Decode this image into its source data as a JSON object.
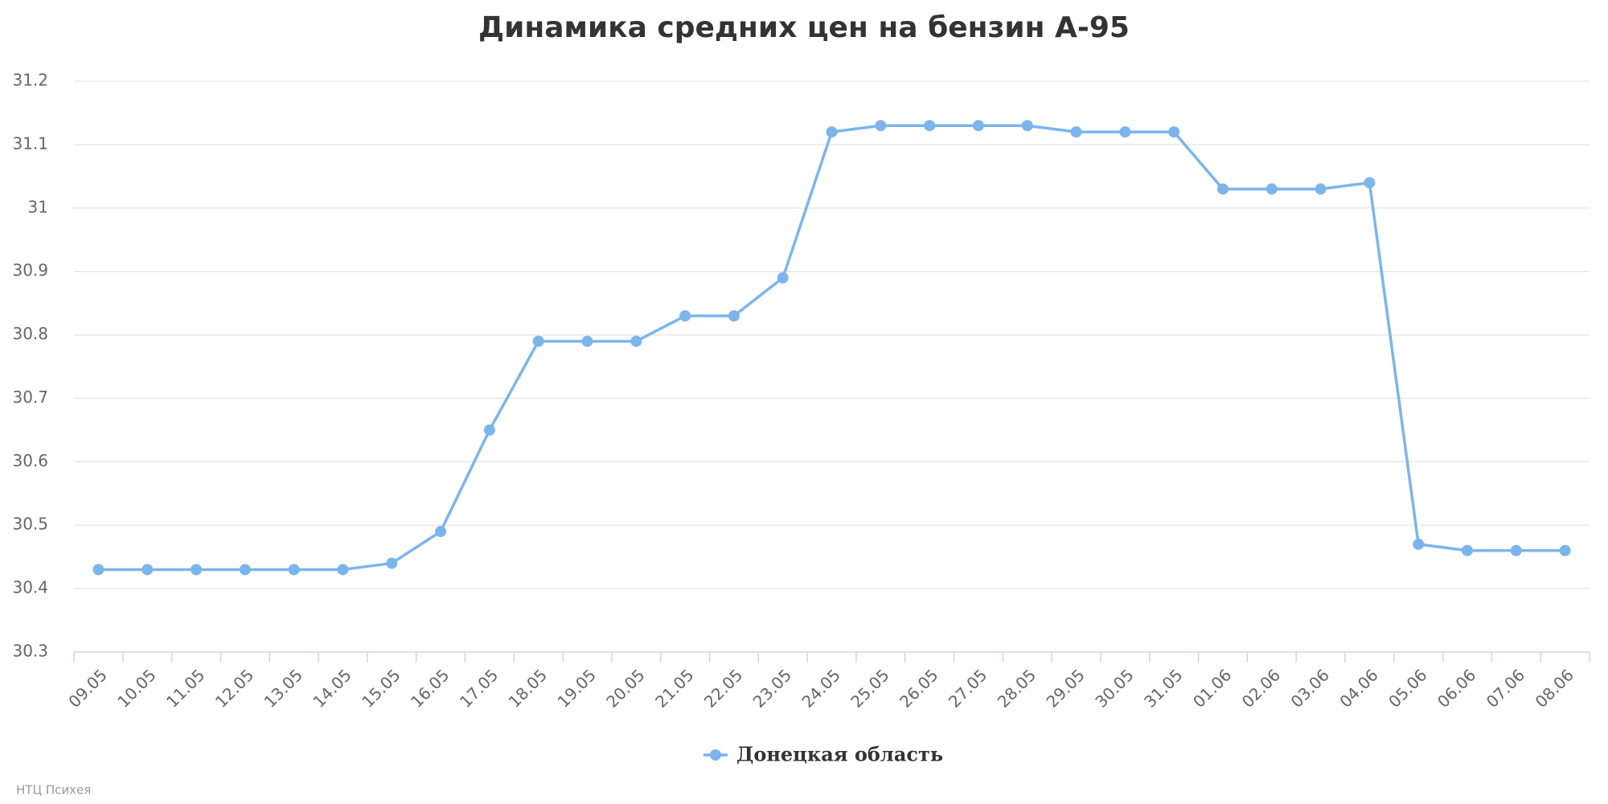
{
  "chart_data": {
    "type": "line",
    "title": "Динамика средних цен на бензин А-95",
    "categories": [
      "09.05",
      "10.05",
      "11.05",
      "12.05",
      "13.05",
      "14.05",
      "15.05",
      "16.05",
      "17.05",
      "18.05",
      "19.05",
      "20.05",
      "21.05",
      "22.05",
      "23.05",
      "24.05",
      "25.05",
      "26.05",
      "27.05",
      "28.05",
      "29.05",
      "30.05",
      "31.05",
      "01.06",
      "02.06",
      "03.06",
      "04.06",
      "05.06",
      "06.06",
      "07.06",
      "08.06"
    ],
    "series": [
      {
        "name": "Донецкая область",
        "color": "#7cb5ec",
        "values": [
          30.43,
          30.43,
          30.43,
          30.43,
          30.43,
          30.43,
          30.44,
          30.49,
          30.65,
          30.79,
          30.79,
          30.79,
          30.83,
          30.83,
          30.89,
          31.12,
          31.13,
          31.13,
          31.13,
          31.13,
          31.12,
          31.12,
          31.12,
          31.03,
          31.03,
          31.03,
          31.04,
          30.47,
          30.46,
          30.46,
          30.46
        ]
      }
    ],
    "ylim": [
      30.3,
      31.2
    ],
    "yticks": [
      30.3,
      30.4,
      30.5,
      30.6,
      30.7,
      30.8,
      30.9,
      31,
      31.1,
      31.2
    ],
    "grid": true,
    "legend": "bottom",
    "credit": "НТЦ Психея"
  }
}
